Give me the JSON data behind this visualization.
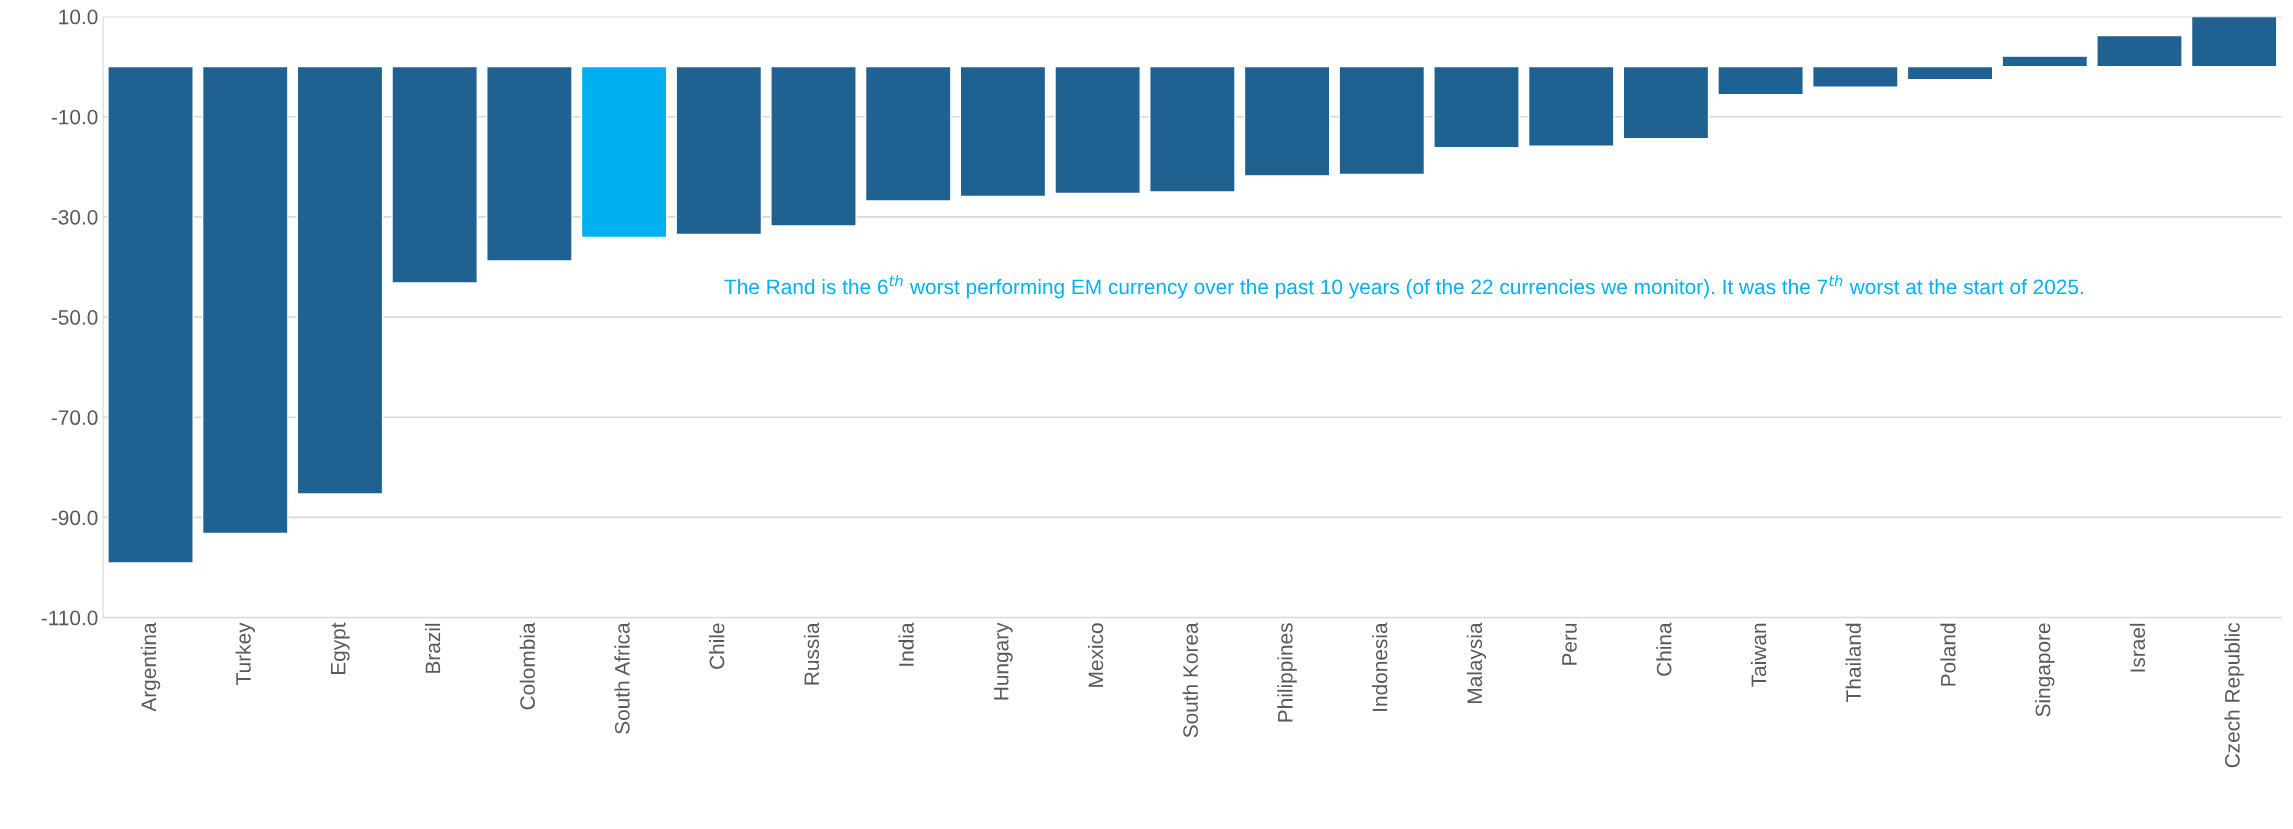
{
  "chart_data": {
    "type": "bar",
    "categories": [
      "Argentina",
      "Turkey",
      "Egypt",
      "Brazil",
      "Colombia",
      "South Africa",
      "Chile",
      "Russia",
      "India",
      "Hungary",
      "Mexico",
      "South Korea",
      "Philippines",
      "Indonesia",
      "Malaysia",
      "Peru",
      "China",
      "Taiwan",
      "Thailand",
      "Poland",
      "Singapore",
      "Israel",
      "Czech Republic"
    ],
    "values": [
      -99.1,
      -93.2,
      -85.3,
      -43.2,
      -38.8,
      -34.1,
      -33.5,
      -31.8,
      -26.8,
      -25.9,
      -25.3,
      -25.0,
      -21.8,
      -21.5,
      -16.2,
      -15.9,
      -14.4,
      -5.6,
      -4.1,
      -2.6,
      2.1,
      6.2,
      10.0
    ],
    "colors": [
      "#1f6190",
      "#1f6190",
      "#1f6190",
      "#1f6190",
      "#1f6190",
      "#00b0f0",
      "#1f6190",
      "#1f6190",
      "#1f6190",
      "#1f6190",
      "#1f6190",
      "#1f6190",
      "#1f6190",
      "#1f6190",
      "#1f6190",
      "#1f6190",
      "#1f6190",
      "#1f6190",
      "#1f6190",
      "#1f6190",
      "#1f6190",
      "#1f6190",
      "#1f6190"
    ],
    "ylim": [
      -110,
      10
    ],
    "yticks": [
      {
        "value": 10,
        "label": "10.0"
      },
      {
        "value": -10,
        "label": "-10.0"
      },
      {
        "value": -30,
        "label": "-30.0"
      },
      {
        "value": -50,
        "label": "-50.0"
      },
      {
        "value": -70,
        "label": "-70.0"
      },
      {
        "value": -90,
        "label": "-90.0"
      },
      {
        "value": -110,
        "label": "-110.0"
      }
    ],
    "grid": "y",
    "legend": false,
    "annotations": [
      "The Rand is the 6$^{th}$ worst performing EM currency over the past 10 years (of the 22 currencies we monitor). It was the 7$^{th}$ worst at the start of 2025."
    ]
  }
}
